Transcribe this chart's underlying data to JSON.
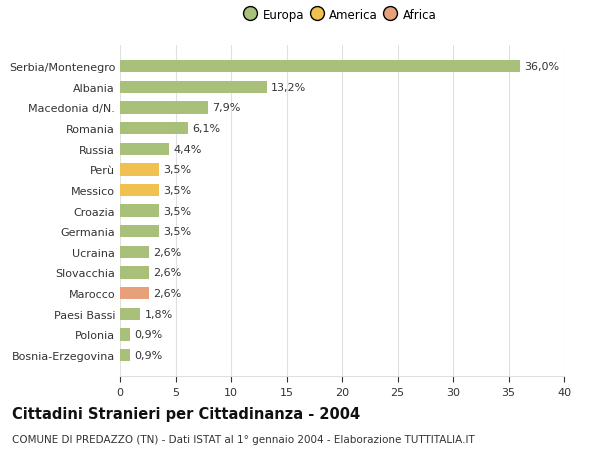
{
  "categories": [
    "Bosnia-Erzegovina",
    "Polonia",
    "Paesi Bassi",
    "Marocco",
    "Slovacchia",
    "Ucraina",
    "Germania",
    "Croazia",
    "Messico",
    "Perù",
    "Russia",
    "Romania",
    "Macedonia d/N.",
    "Albania",
    "Serbia/Montenegro"
  ],
  "values": [
    0.9,
    0.9,
    1.8,
    2.6,
    2.6,
    2.6,
    3.5,
    3.5,
    3.5,
    3.5,
    4.4,
    6.1,
    7.9,
    13.2,
    36.0
  ],
  "labels": [
    "0,9%",
    "0,9%",
    "1,8%",
    "2,6%",
    "2,6%",
    "2,6%",
    "3,5%",
    "3,5%",
    "3,5%",
    "3,5%",
    "4,4%",
    "6,1%",
    "7,9%",
    "13,2%",
    "36,0%"
  ],
  "colors": [
    "#a8c07a",
    "#a8c07a",
    "#a8c07a",
    "#e8a07a",
    "#a8c07a",
    "#a8c07a",
    "#a8c07a",
    "#a8c07a",
    "#f0c050",
    "#f0c050",
    "#a8c07a",
    "#a8c07a",
    "#a8c07a",
    "#a8c07a",
    "#a8c07a"
  ],
  "legend_labels": [
    "Europa",
    "America",
    "Africa"
  ],
  "legend_colors": [
    "#a8c07a",
    "#f0c050",
    "#e8a07a"
  ],
  "xlim": [
    0,
    40
  ],
  "xticks": [
    0,
    5,
    10,
    15,
    20,
    25,
    30,
    35,
    40
  ],
  "title": "Cittadini Stranieri per Cittadinanza - 2004",
  "subtitle": "COMUNE DI PREDAZZO (TN) - Dati ISTAT al 1° gennaio 2004 - Elaborazione TUTTITALIA.IT",
  "bg_color": "#ffffff",
  "grid_color": "#e0e0e0",
  "bar_height": 0.6,
  "text_color": "#333333",
  "title_fontsize": 10.5,
  "subtitle_fontsize": 7.5,
  "label_fontsize": 8,
  "tick_fontsize": 8,
  "value_fontsize": 8
}
